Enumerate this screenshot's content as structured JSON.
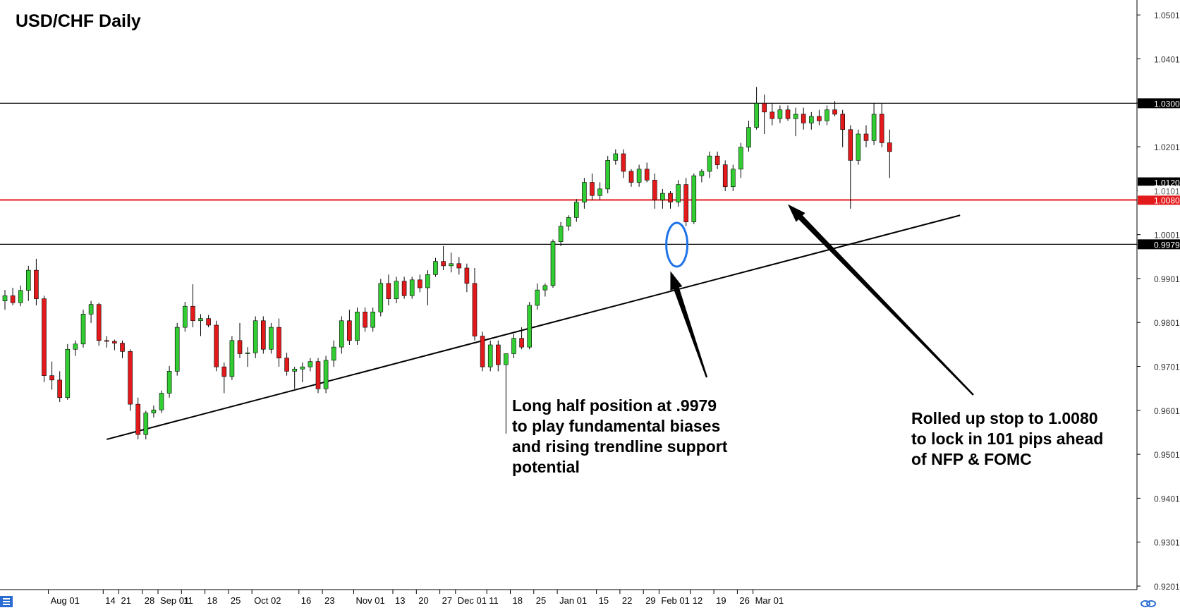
{
  "chart_data": {
    "type": "candlestick",
    "title": "USD/CHF Daily",
    "ylim": [
      0.9193,
      1.0535
    ],
    "y_ticks": [
      "1.0501",
      "1.0401",
      "1.0301",
      "1.0201",
      "1.0101",
      "1.0001",
      "0.9901",
      "0.9801",
      "0.9701",
      "0.9601",
      "0.9501",
      "0.9401",
      "0.9301",
      "0.9201"
    ],
    "y_tick_values": [
      1.0501,
      1.0401,
      1.0301,
      1.0201,
      1.0101,
      1.0001,
      0.9901,
      0.9801,
      0.9701,
      0.9601,
      0.9501,
      0.9401,
      0.9301,
      0.9201
    ],
    "x_ticks": [
      "Aug 01",
      "14",
      "21",
      "28",
      "Sep 01",
      "11",
      "18",
      "25",
      "Oct 02",
      "16",
      "23",
      "Nov 01",
      "13",
      "20",
      "27",
      "Dec 01",
      "11",
      "18",
      "25",
      "Jan 01",
      "15",
      "22",
      "29",
      "Feb 01",
      "12",
      "19",
      "26",
      "Mar 01"
    ],
    "x_tick_bars": [
      6,
      13,
      15,
      18,
      20,
      23,
      26,
      29,
      32,
      38,
      41,
      45,
      50,
      53,
      56,
      58,
      62,
      65,
      68,
      71,
      76,
      79,
      82,
      84,
      88,
      91,
      94,
      96
    ],
    "horizontal_lines": [
      {
        "value": 1.03,
        "label": "1.0300",
        "color": "#000000"
      },
      {
        "value": 1.008,
        "label": "1.0080",
        "color": "#e31a1c"
      },
      {
        "value": 0.9979,
        "label": "0.9979",
        "color": "#000000"
      }
    ],
    "price_tags": [
      {
        "value": 1.012,
        "label": "1.0120",
        "bg": "#000000",
        "fg": "#ffffff"
      },
      {
        "value": 1.0101,
        "label": "1.0101",
        "bg": "#ffffff",
        "fg": "#666666"
      }
    ],
    "trendline": {
      "from": {
        "bar": 13,
        "price": 0.9535
      },
      "to": {
        "bar": 122,
        "price": 1.0045
      }
    },
    "highlight_bar": 86,
    "annotations": [
      {
        "text": [
          "Long half position at .9979",
          "to play fundamental biases",
          "and rising trendline support",
          "potential"
        ],
        "arrow_tip": {
          "bar": 85,
          "price": 0.9918
        }
      },
      {
        "text": [
          "Rolled up stop to 1.0080",
          "to lock in 101 pips ahead",
          "of NFP & FOMC"
        ],
        "arrow_tip": {
          "bar": 100,
          "price": 1.007
        }
      }
    ],
    "colors": {
      "up": "#32cd32",
      "down": "#e31a1c",
      "wick": "#000000"
    },
    "candles": [
      {
        "o": 0.985,
        "h": 0.9875,
        "l": 0.983,
        "c": 0.9862
      },
      {
        "o": 0.9862,
        "h": 0.988,
        "l": 0.984,
        "c": 0.9846
      },
      {
        "o": 0.9846,
        "h": 0.9885,
        "l": 0.9838,
        "c": 0.9874
      },
      {
        "o": 0.9874,
        "h": 0.993,
        "l": 0.985,
        "c": 0.992
      },
      {
        "o": 0.992,
        "h": 0.9946,
        "l": 0.984,
        "c": 0.9855
      },
      {
        "o": 0.9855,
        "h": 0.9862,
        "l": 0.9665,
        "c": 0.968
      },
      {
        "o": 0.968,
        "h": 0.9712,
        "l": 0.9648,
        "c": 0.967
      },
      {
        "o": 0.967,
        "h": 0.969,
        "l": 0.962,
        "c": 0.963
      },
      {
        "o": 0.963,
        "h": 0.9752,
        "l": 0.9625,
        "c": 0.974
      },
      {
        "o": 0.974,
        "h": 0.976,
        "l": 0.9725,
        "c": 0.9752
      },
      {
        "o": 0.9752,
        "h": 0.983,
        "l": 0.9744,
        "c": 0.982
      },
      {
        "o": 0.982,
        "h": 0.985,
        "l": 0.98,
        "c": 0.9842
      },
      {
        "o": 0.9842,
        "h": 0.9846,
        "l": 0.9748,
        "c": 0.976
      },
      {
        "o": 0.976,
        "h": 0.977,
        "l": 0.9744,
        "c": 0.9758
      },
      {
        "o": 0.9758,
        "h": 0.9762,
        "l": 0.9738,
        "c": 0.9754
      },
      {
        "o": 0.9754,
        "h": 0.976,
        "l": 0.972,
        "c": 0.9735
      },
      {
        "o": 0.9735,
        "h": 0.974,
        "l": 0.96,
        "c": 0.9615
      },
      {
        "o": 0.9615,
        "h": 0.963,
        "l": 0.9535,
        "c": 0.9546
      },
      {
        "o": 0.9546,
        "h": 0.96,
        "l": 0.9535,
        "c": 0.9595
      },
      {
        "o": 0.9595,
        "h": 0.9612,
        "l": 0.9585,
        "c": 0.9602
      },
      {
        "o": 0.9602,
        "h": 0.9646,
        "l": 0.9595,
        "c": 0.964
      },
      {
        "o": 0.964,
        "h": 0.9702,
        "l": 0.963,
        "c": 0.969
      },
      {
        "o": 0.969,
        "h": 0.98,
        "l": 0.968,
        "c": 0.979
      },
      {
        "o": 0.979,
        "h": 0.9848,
        "l": 0.978,
        "c": 0.9838
      },
      {
        "o": 0.9838,
        "h": 0.9888,
        "l": 0.979,
        "c": 0.9805
      },
      {
        "o": 0.9805,
        "h": 0.982,
        "l": 0.977,
        "c": 0.981
      },
      {
        "o": 0.981,
        "h": 0.9818,
        "l": 0.979,
        "c": 0.9795
      },
      {
        "o": 0.9795,
        "h": 0.9805,
        "l": 0.969,
        "c": 0.97
      },
      {
        "o": 0.97,
        "h": 0.971,
        "l": 0.964,
        "c": 0.9678
      },
      {
        "o": 0.9678,
        "h": 0.977,
        "l": 0.967,
        "c": 0.976
      },
      {
        "o": 0.976,
        "h": 0.98,
        "l": 0.972,
        "c": 0.973
      },
      {
        "o": 0.973,
        "h": 0.9745,
        "l": 0.97,
        "c": 0.9732
      },
      {
        "o": 0.9732,
        "h": 0.9815,
        "l": 0.972,
        "c": 0.9805
      },
      {
        "o": 0.9805,
        "h": 0.9815,
        "l": 0.973,
        "c": 0.974
      },
      {
        "o": 0.974,
        "h": 0.98,
        "l": 0.973,
        "c": 0.979
      },
      {
        "o": 0.979,
        "h": 0.981,
        "l": 0.97,
        "c": 0.972
      },
      {
        "o": 0.972,
        "h": 0.9732,
        "l": 0.968,
        "c": 0.969
      },
      {
        "o": 0.969,
        "h": 0.97,
        "l": 0.965,
        "c": 0.9695
      },
      {
        "o": 0.9695,
        "h": 0.971,
        "l": 0.9665,
        "c": 0.97
      },
      {
        "o": 0.97,
        "h": 0.972,
        "l": 0.969,
        "c": 0.9712
      },
      {
        "o": 0.9712,
        "h": 0.972,
        "l": 0.964,
        "c": 0.965
      },
      {
        "o": 0.965,
        "h": 0.9725,
        "l": 0.964,
        "c": 0.9715
      },
      {
        "o": 0.9715,
        "h": 0.976,
        "l": 0.97,
        "c": 0.9745
      },
      {
        "o": 0.9745,
        "h": 0.9815,
        "l": 0.973,
        "c": 0.9805
      },
      {
        "o": 0.9805,
        "h": 0.983,
        "l": 0.975,
        "c": 0.976
      },
      {
        "o": 0.976,
        "h": 0.9835,
        "l": 0.975,
        "c": 0.9825
      },
      {
        "o": 0.9825,
        "h": 0.9835,
        "l": 0.978,
        "c": 0.979
      },
      {
        "o": 0.979,
        "h": 0.9835,
        "l": 0.978,
        "c": 0.9825
      },
      {
        "o": 0.9825,
        "h": 0.99,
        "l": 0.9815,
        "c": 0.989
      },
      {
        "o": 0.989,
        "h": 0.991,
        "l": 0.984,
        "c": 0.9855
      },
      {
        "o": 0.9855,
        "h": 0.9905,
        "l": 0.9845,
        "c": 0.9895
      },
      {
        "o": 0.9895,
        "h": 0.9905,
        "l": 0.9855,
        "c": 0.9862
      },
      {
        "o": 0.9862,
        "h": 0.9905,
        "l": 0.9855,
        "c": 0.9898
      },
      {
        "o": 0.9898,
        "h": 0.991,
        "l": 0.987,
        "c": 0.988
      },
      {
        "o": 0.988,
        "h": 0.992,
        "l": 0.984,
        "c": 0.991
      },
      {
        "o": 0.991,
        "h": 0.9948,
        "l": 0.9905,
        "c": 0.994
      },
      {
        "o": 0.994,
        "h": 0.9975,
        "l": 0.992,
        "c": 0.993
      },
      {
        "o": 0.993,
        "h": 0.996,
        "l": 0.9915,
        "c": 0.9935
      },
      {
        "o": 0.9935,
        "h": 0.995,
        "l": 0.991,
        "c": 0.9925
      },
      {
        "o": 0.9925,
        "h": 0.9935,
        "l": 0.987,
        "c": 0.989
      },
      {
        "o": 0.989,
        "h": 0.9925,
        "l": 0.976,
        "c": 0.977
      },
      {
        "o": 0.977,
        "h": 0.978,
        "l": 0.969,
        "c": 0.97
      },
      {
        "o": 0.97,
        "h": 0.976,
        "l": 0.969,
        "c": 0.975
      },
      {
        "o": 0.975,
        "h": 0.976,
        "l": 0.969,
        "c": 0.9705
      },
      {
        "o": 0.9705,
        "h": 0.973,
        "l": 0.9548,
        "c": 0.973
      },
      {
        "o": 0.973,
        "h": 0.9775,
        "l": 0.972,
        "c": 0.9765
      },
      {
        "o": 0.9765,
        "h": 0.979,
        "l": 0.974,
        "c": 0.9745
      },
      {
        "o": 0.9745,
        "h": 0.9848,
        "l": 0.974,
        "c": 0.984
      },
      {
        "o": 0.984,
        "h": 0.989,
        "l": 0.983,
        "c": 0.9875
      },
      {
        "o": 0.9875,
        "h": 0.989,
        "l": 0.986,
        "c": 0.9885
      },
      {
        "o": 0.9885,
        "h": 0.999,
        "l": 0.988,
        "c": 0.9985
      },
      {
        "o": 0.9985,
        "h": 1.003,
        "l": 0.9975,
        "c": 1.002
      },
      {
        "o": 1.002,
        "h": 1.0045,
        "l": 1.001,
        "c": 1.004
      },
      {
        "o": 1.004,
        "h": 1.0082,
        "l": 1.003,
        "c": 1.0075
      },
      {
        "o": 1.0075,
        "h": 1.013,
        "l": 1.006,
        "c": 1.012
      },
      {
        "o": 1.012,
        "h": 1.014,
        "l": 1.008,
        "c": 1.009
      },
      {
        "o": 1.009,
        "h": 1.012,
        "l": 1.008,
        "c": 1.0105
      },
      {
        "o": 1.0105,
        "h": 1.018,
        "l": 1.0095,
        "c": 1.017
      },
      {
        "o": 1.017,
        "h": 1.0195,
        "l": 1.016,
        "c": 1.0185
      },
      {
        "o": 1.0185,
        "h": 1.0195,
        "l": 1.013,
        "c": 1.0145
      },
      {
        "o": 1.0145,
        "h": 1.015,
        "l": 1.011,
        "c": 1.012
      },
      {
        "o": 1.012,
        "h": 1.016,
        "l": 1.011,
        "c": 1.015
      },
      {
        "o": 1.015,
        "h": 1.0165,
        "l": 1.012,
        "c": 1.0125
      },
      {
        "o": 1.0125,
        "h": 1.014,
        "l": 1.006,
        "c": 1.008
      },
      {
        "o": 1.008,
        "h": 1.0105,
        "l": 1.006,
        "c": 1.0095
      },
      {
        "o": 1.0095,
        "h": 1.01,
        "l": 1.006,
        "c": 1.0075
      },
      {
        "o": 1.0075,
        "h": 1.0125,
        "l": 1.0065,
        "c": 1.0115
      },
      {
        "o": 1.0115,
        "h": 1.013,
        "l": 1.002,
        "c": 1.003
      },
      {
        "o": 1.003,
        "h": 1.014,
        "l": 1.0025,
        "c": 1.0135
      },
      {
        "o": 1.0135,
        "h": 1.015,
        "l": 1.012,
        "c": 1.0145
      },
      {
        "o": 1.0145,
        "h": 1.019,
        "l": 1.013,
        "c": 1.018
      },
      {
        "o": 1.018,
        "h": 1.019,
        "l": 1.015,
        "c": 1.016
      },
      {
        "o": 1.016,
        "h": 1.017,
        "l": 1.01,
        "c": 1.011
      },
      {
        "o": 1.011,
        "h": 1.016,
        "l": 1.01,
        "c": 1.015
      },
      {
        "o": 1.015,
        "h": 1.021,
        "l": 1.013,
        "c": 1.02
      },
      {
        "o": 1.02,
        "h": 1.026,
        "l": 1.019,
        "c": 1.0245
      },
      {
        "o": 1.0245,
        "h": 1.0337,
        "l": 1.024,
        "c": 1.03
      },
      {
        "o": 1.03,
        "h": 1.032,
        "l": 1.023,
        "c": 1.028
      },
      {
        "o": 1.028,
        "h": 1.03,
        "l": 1.025,
        "c": 1.0265
      },
      {
        "o": 1.0265,
        "h": 1.0295,
        "l": 1.0255,
        "c": 1.0285
      },
      {
        "o": 1.0285,
        "h": 1.0295,
        "l": 1.026,
        "c": 1.0265
      },
      {
        "o": 1.0265,
        "h": 1.029,
        "l": 1.0225,
        "c": 1.0275
      },
      {
        "o": 1.0275,
        "h": 1.029,
        "l": 1.024,
        "c": 1.0255
      },
      {
        "o": 1.0255,
        "h": 1.028,
        "l": 1.024,
        "c": 1.027
      },
      {
        "o": 1.027,
        "h": 1.0285,
        "l": 1.025,
        "c": 1.026
      },
      {
        "o": 1.026,
        "h": 1.0295,
        "l": 1.025,
        "c": 1.0285
      },
      {
        "o": 1.0285,
        "h": 1.0305,
        "l": 1.027,
        "c": 1.0275
      },
      {
        "o": 1.0275,
        "h": 1.0285,
        "l": 1.02,
        "c": 1.024
      },
      {
        "o": 1.024,
        "h": 1.025,
        "l": 1.006,
        "c": 1.017
      },
      {
        "o": 1.017,
        "h": 1.024,
        "l": 1.016,
        "c": 1.023
      },
      {
        "o": 1.023,
        "h": 1.025,
        "l": 1.02,
        "c": 1.0215
      },
      {
        "o": 1.0215,
        "h": 1.03,
        "l": 1.0205,
        "c": 1.0275
      },
      {
        "o": 1.0275,
        "h": 1.03,
        "l": 1.02,
        "c": 1.021
      },
      {
        "o": 1.021,
        "h": 1.024,
        "l": 1.013,
        "c": 1.019
      }
    ]
  }
}
